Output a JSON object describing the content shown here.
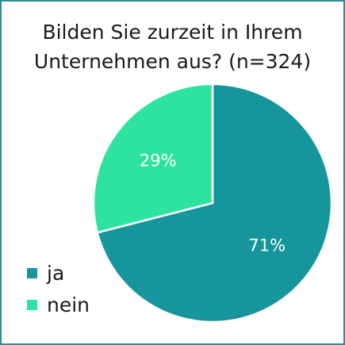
{
  "chart_data": {
    "type": "pie",
    "title": [
      "Bilden Sie zurzeit in Ihrem",
      "Unternehmen aus? (n=324)"
    ],
    "slices": [
      {
        "label": "ja",
        "value": 71,
        "display": "71%",
        "color": "#16959c"
      },
      {
        "label": "nein",
        "value": 29,
        "display": "29%",
        "color": "#2ee29f"
      }
    ],
    "legend_position": "bottom-left",
    "background": "#ffffff",
    "border_color": "#2a8e96"
  }
}
